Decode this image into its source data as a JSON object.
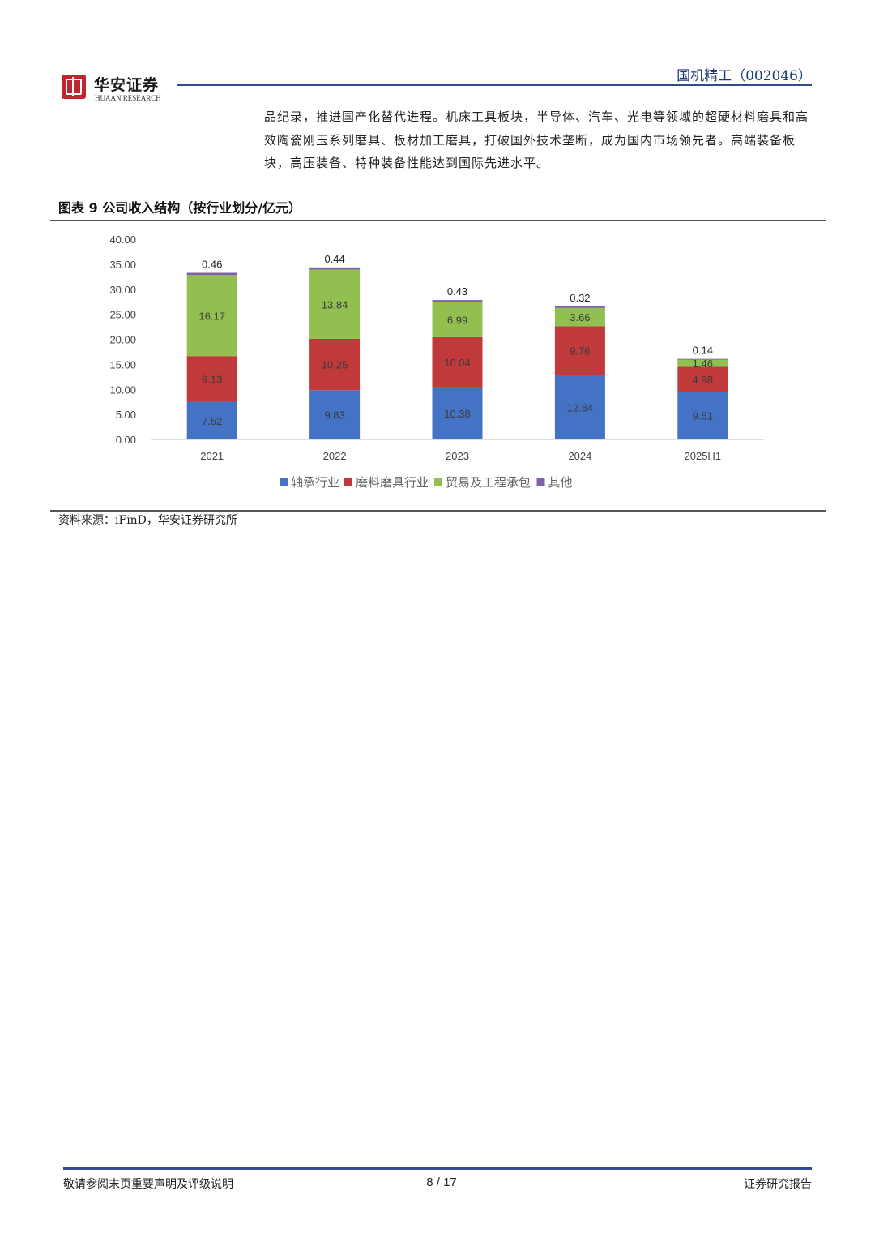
{
  "header": {
    "logo_cn": "华安证券",
    "logo_en": "HUAAN RESEARCH",
    "stock_title": "国机精工（002046）"
  },
  "body": {
    "paragraph": "品纪录，推进国产化替代进程。机床工具板块，半导体、汽车、光电等领域的超硬材料磨具和高效陶瓷刚玉系列磨具、板材加工磨具，打破国外技术垄断，成为国内市场领先者。高端装备板块，高压装备、特种装备性能达到国际先进水平。"
  },
  "figure": {
    "title": "图表 9 公司收入结构（按行业划分/亿元）",
    "source": "资料来源：iFinD，华安证券研究所"
  },
  "chart_data": {
    "type": "bar",
    "stacked": true,
    "categories": [
      "2021",
      "2022",
      "2023",
      "2024",
      "2025H1"
    ],
    "series": [
      {
        "name": "轴承行业",
        "color": "#4472c4",
        "values": [
          7.52,
          9.83,
          10.38,
          12.84,
          9.51
        ]
      },
      {
        "name": "磨料磨具行业",
        "color": "#c0393b",
        "values": [
          9.13,
          10.25,
          10.04,
          9.76,
          4.98
        ]
      },
      {
        "name": "贸易及工程承包",
        "color": "#92c050",
        "values": [
          16.17,
          13.84,
          6.99,
          3.66,
          1.46
        ]
      },
      {
        "name": "其他",
        "color": "#7f62a6",
        "values": [
          0.46,
          0.44,
          0.43,
          0.32,
          0.14
        ]
      }
    ],
    "yticks": [
      "0.00",
      "5.00",
      "10.00",
      "15.00",
      "20.00",
      "25.00",
      "30.00",
      "35.00",
      "40.00"
    ],
    "ylim": [
      0,
      40
    ],
    "legend_position": "bottom",
    "grid": false
  },
  "footer": {
    "left": "敬请参阅末页重要声明及评级说明",
    "page": "8 / 17",
    "right": "证券研究报告"
  }
}
